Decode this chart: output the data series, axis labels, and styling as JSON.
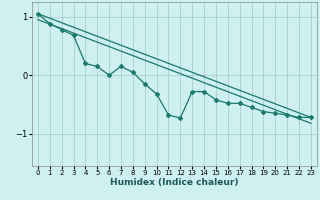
{
  "xlabel": "Humidex (Indice chaleur)",
  "ylabel": "",
  "bg_color": "#cff0f0",
  "grid_color": "#aacfcf",
  "line_color": "#1a7a6e",
  "xlim": [
    -0.5,
    23.5
  ],
  "ylim": [
    -1.55,
    1.25
  ],
  "yticks": [
    -1,
    0,
    1
  ],
  "xticks": [
    0,
    1,
    2,
    3,
    4,
    5,
    6,
    7,
    8,
    9,
    10,
    11,
    12,
    13,
    14,
    15,
    16,
    17,
    18,
    19,
    20,
    21,
    22,
    23
  ],
  "line1_x": [
    0,
    1,
    2,
    3,
    4,
    5,
    6,
    7,
    8,
    9,
    10,
    11,
    12,
    13,
    14,
    15,
    16,
    17,
    18,
    19,
    20,
    21,
    22,
    23
  ],
  "line1_y": [
    1.05,
    0.88,
    0.78,
    0.68,
    0.2,
    0.15,
    0.0,
    0.15,
    0.05,
    -0.15,
    -0.32,
    -0.68,
    -0.73,
    -0.28,
    -0.28,
    -0.42,
    -0.48,
    -0.48,
    -0.55,
    -0.62,
    -0.65,
    -0.68,
    -0.72,
    -0.72
  ],
  "line2_x": [
    0,
    23
  ],
  "line2_y": [
    1.05,
    -0.72
  ],
  "line3_x": [
    0,
    23
  ],
  "line3_y": [
    0.95,
    -0.82
  ]
}
